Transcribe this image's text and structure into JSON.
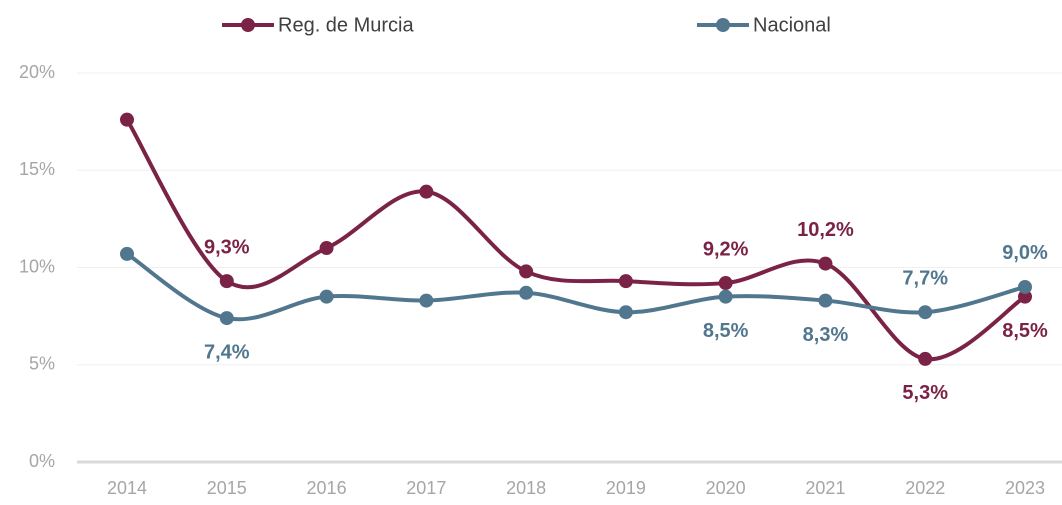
{
  "chart_data": {
    "type": "line",
    "categories": [
      "2014",
      "2015",
      "2016",
      "2017",
      "2018",
      "2019",
      "2020",
      "2021",
      "2022",
      "2023"
    ],
    "series": [
      {
        "name": "Reg. de Murcia",
        "color": "#7b2346",
        "values": [
          17.6,
          9.3,
          11.0,
          13.9,
          9.8,
          9.3,
          9.2,
          10.2,
          5.3,
          8.5
        ],
        "value_labels": [
          null,
          "9,3%",
          null,
          null,
          null,
          null,
          "9,2%",
          "10,2%",
          "5,3%",
          "8,5%"
        ]
      },
      {
        "name": "Nacional",
        "color": "#51778f",
        "values": [
          10.7,
          7.4,
          8.5,
          8.3,
          8.7,
          7.7,
          8.5,
          8.3,
          7.7,
          9.0
        ],
        "value_labels": [
          null,
          "7,4%",
          null,
          null,
          null,
          null,
          "8,5%",
          "8,3%",
          "7,7%",
          "9,0%"
        ]
      }
    ],
    "ylim": [
      0,
      20
    ],
    "yticks": [
      {
        "value": 0,
        "label": "0%"
      },
      {
        "value": 5,
        "label": "5%"
      },
      {
        "value": 10,
        "label": "10%"
      },
      {
        "value": 15,
        "label": "15%"
      },
      {
        "value": 20,
        "label": "20%"
      }
    ],
    "grid": true,
    "legend": "top"
  }
}
